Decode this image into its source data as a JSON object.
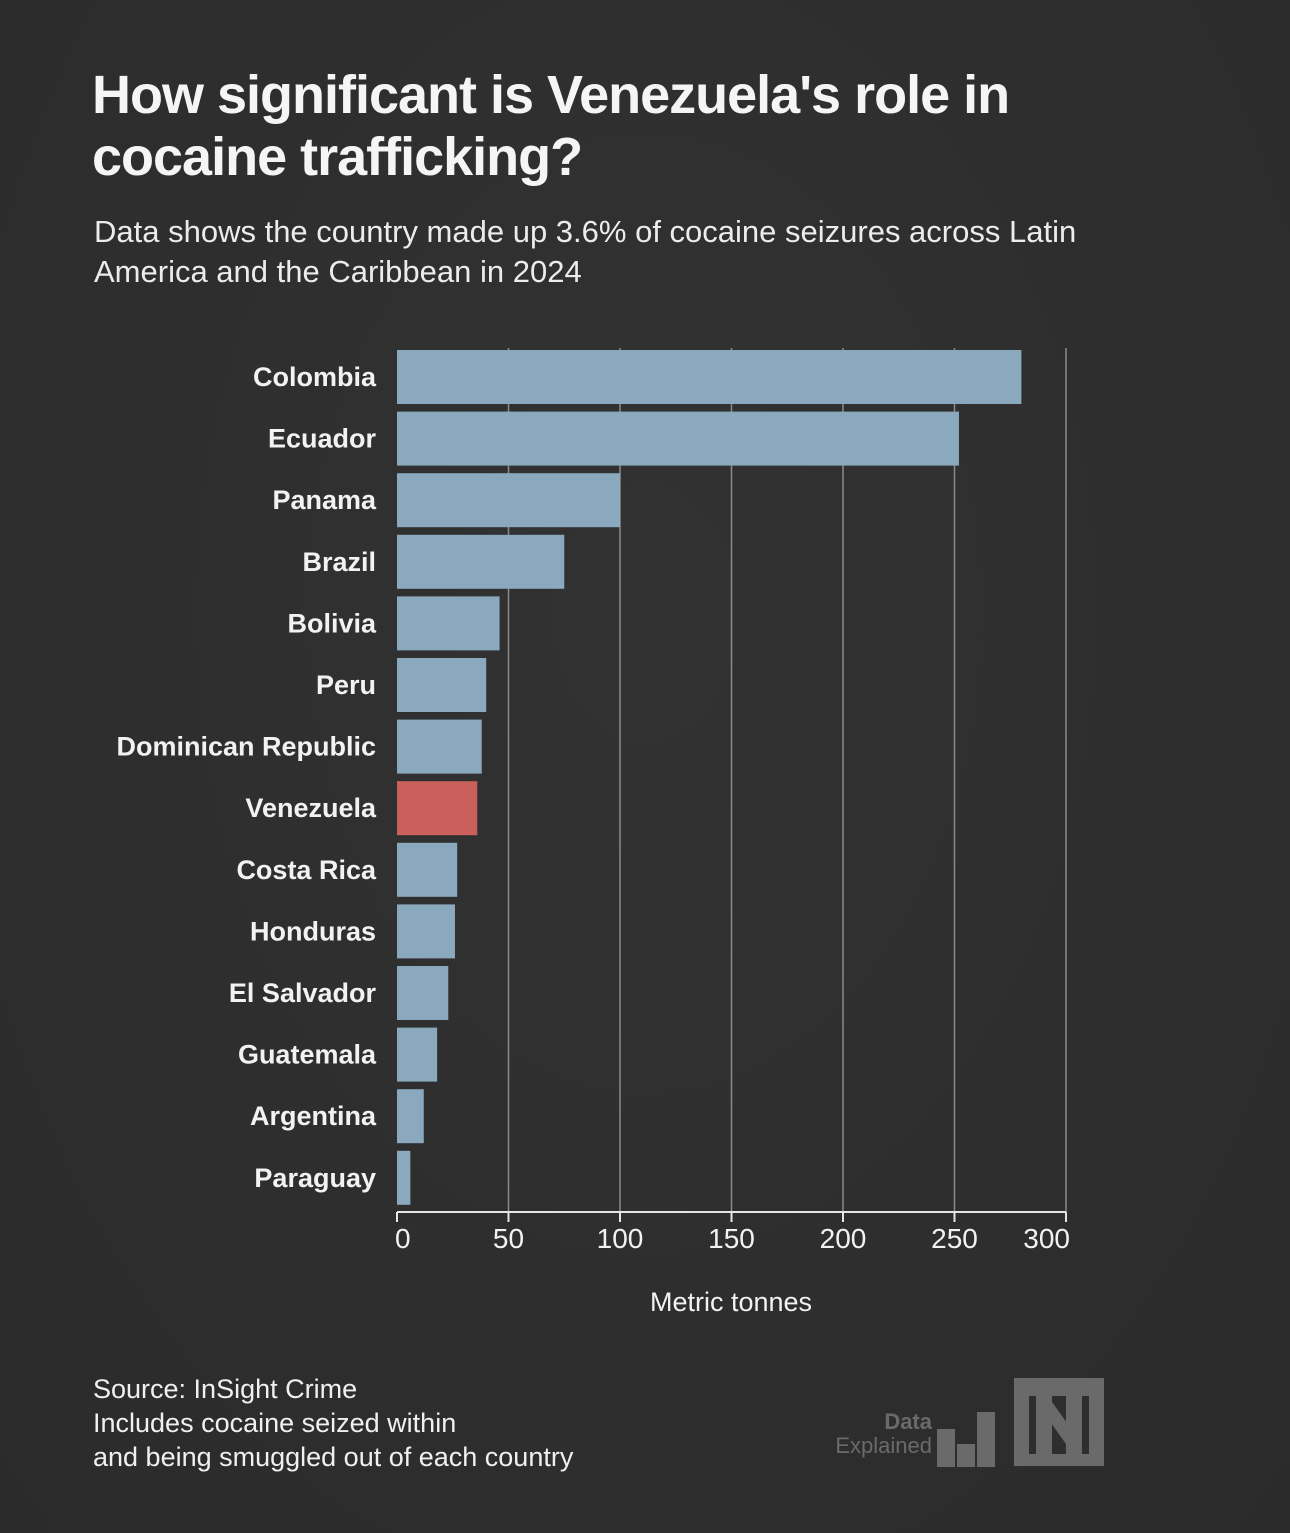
{
  "header": {
    "title": "How significant is Venezuela's role in cocaine trafficking?",
    "subtitle": "Data shows the country made up 3.6% of cocaine seizures across Latin America and the Caribbean in 2024"
  },
  "footer": {
    "source": "Source: InSight Crime",
    "note_line1": "Includes cocaine seized within",
    "note_line2": "and being smuggled out of each country"
  },
  "logo": {
    "line1": "Data",
    "line2": "Explained",
    "icon": "bar-chart-n-logo-icon"
  },
  "colors": {
    "background": "#2e2e2e",
    "bar_default": "#8aa9be",
    "bar_highlight": "#c9605c",
    "grid": "#8a8a8a",
    "text": "#f2f2f2",
    "logo": "#6a6a6a"
  },
  "chart_data": {
    "type": "bar",
    "orientation": "horizontal",
    "title": "How significant is Venezuela's role in cocaine trafficking?",
    "subtitle": "Data shows the country made up 3.6% of cocaine seizures across Latin America and the Caribbean in 2024",
    "categories": [
      "Colombia",
      "Ecuador",
      "Panama",
      "Brazil",
      "Bolivia",
      "Peru",
      "Dominican Republic",
      "Venezuela",
      "Costa Rica",
      "Honduras",
      "El Salvador",
      "Guatemala",
      "Argentina",
      "Paraguay"
    ],
    "values": [
      280,
      252,
      100,
      75,
      46,
      40,
      38,
      36,
      27,
      26,
      23,
      18,
      12,
      6
    ],
    "highlight": "Venezuela",
    "xlabel": "Metric tonnes",
    "ylabel": "",
    "xlim": [
      0,
      300
    ],
    "xticks": [
      0,
      50,
      100,
      150,
      200,
      250,
      300
    ],
    "xtick_labels": [
      "0",
      "50",
      "100",
      "150",
      "200",
      "250",
      "300"
    ],
    "grid": "vertical"
  }
}
